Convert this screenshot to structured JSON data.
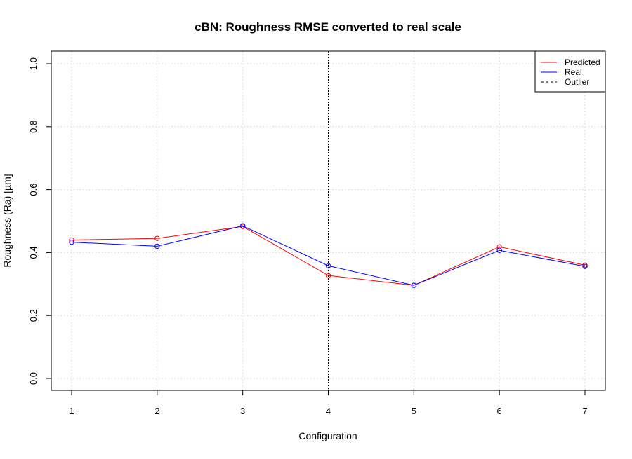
{
  "chart_data": {
    "type": "line",
    "title": "cBN: Roughness RMSE converted to real scale",
    "xlabel": "Configuration",
    "ylabel": "Roughness (Ra) [µm]",
    "x": [
      1,
      2,
      3,
      4,
      5,
      6,
      7
    ],
    "xlim": [
      1,
      7
    ],
    "ylim": [
      0,
      1
    ],
    "yticks": [
      0.0,
      0.2,
      0.4,
      0.6,
      0.8,
      1.0
    ],
    "ytick_labels": [
      "0.0",
      "0.2",
      "0.4",
      "0.6",
      "0.8",
      "1.0"
    ],
    "grid": true,
    "legend_position": "top-right",
    "series": [
      {
        "name": "Predicted",
        "color": "#ff0000",
        "values": [
          0.44,
          0.445,
          0.483,
          0.327,
          0.296,
          0.418,
          0.36
        ]
      },
      {
        "name": "Real",
        "color": "#0000ff",
        "values": [
          0.433,
          0.42,
          0.485,
          0.358,
          0.296,
          0.407,
          0.356
        ]
      }
    ],
    "outlier": {
      "name": "Outlier",
      "x": 4,
      "color": "#000000",
      "line_style": "dashed"
    }
  }
}
